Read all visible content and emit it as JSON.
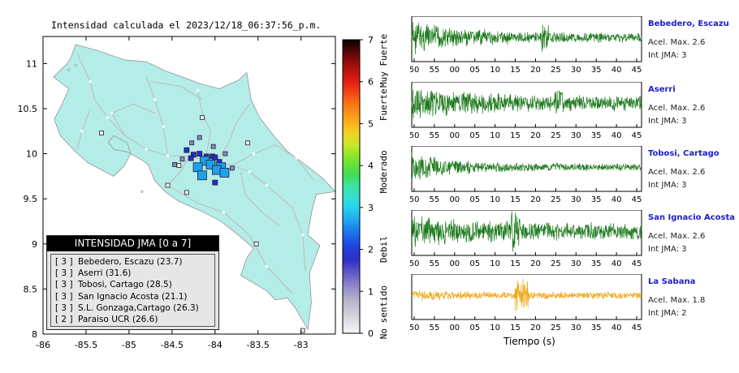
{
  "map": {
    "title": "Intensidad calculada el 2023/12/18_06:37:56_p.m.",
    "x_ticks": [
      "-86",
      "-85.5",
      "-85",
      "-84.5",
      "-84",
      "-83.5",
      "-83"
    ],
    "y_ticks": [
      "11",
      "10.5",
      "10",
      "9.5",
      "9",
      "8.5",
      "8"
    ],
    "land_color": "#b4ece8",
    "sea_color": "#ffffff",
    "road_color": "#bbbbbb"
  },
  "colorbar": {
    "ticks": [
      "0",
      "1",
      "2",
      "3",
      "4",
      "5",
      "6",
      "7"
    ],
    "labels": [
      "No sentido",
      "Debil",
      "Moderado",
      "Fuerte",
      "Muy Fuerte"
    ]
  },
  "legend": {
    "title": "INTENSIDAD JMA [0 a 7]",
    "rows": [
      {
        "level": "[ 3 ]",
        "text": "Bebedero, Escazu (23.7)"
      },
      {
        "level": "[ 3 ]",
        "text": "Aserri (31.6)"
      },
      {
        "level": "[ 3 ]",
        "text": "Tobosi, Cartago (28.5)"
      },
      {
        "level": "[ 3 ]",
        "text": "San Ignacio Acosta (21.1)"
      },
      {
        "level": "[ 3 ]",
        "text": "S.L. Gonzaga,Cartago (26.3)"
      },
      {
        "level": "[ 2 ]",
        "text": "Paraiso UCR (26.6)"
      }
    ]
  },
  "waveforms": {
    "time_ticks": [
      "50",
      "55",
      "00",
      "05",
      "10",
      "15",
      "20",
      "25",
      "30",
      "35",
      "40",
      "45"
    ],
    "xlabel": "Tiempo (s)",
    "stations": [
      {
        "name": "Bebedero, Escazu",
        "accel": "Acel. Max. 2.6",
        "jma": "Int JMA: 3",
        "color": "#1e7a1e"
      },
      {
        "name": "Aserri",
        "accel": "Acel. Max. 2.6",
        "jma": "Int JMA: 3",
        "color": "#1e7a1e"
      },
      {
        "name": "Tobosi, Cartago",
        "accel": "Acel. Max. 2.6",
        "jma": "Int JMA: 3",
        "color": "#1e7a1e"
      },
      {
        "name": "San Ignacio Acosta",
        "accel": "Acel. Max. 2.6",
        "jma": "Int JMA: 3",
        "color": "#1e7a1e"
      },
      {
        "name": "La Sabana",
        "accel": "Acel. Max. 1.8",
        "jma": "Int JMA: 2",
        "color": "#f0a818"
      }
    ]
  },
  "chart_data": [
    {
      "type": "scatter",
      "title": "Intensidad calculada el 2023/12/18_06:37:56_p.m.",
      "xlabel": "",
      "ylabel": "",
      "xlim": [
        -86,
        -82.55
      ],
      "ylim": [
        8,
        11.3
      ],
      "grid": false,
      "colorbar": {
        "range": [
          0,
          7
        ],
        "label_groups": [
          "No sentido",
          "Debil",
          "Moderado",
          "Fuerte",
          "Muy Fuerte"
        ]
      },
      "points": [
        {
          "lon": -84.12,
          "lat": 9.92,
          "level": 3
        },
        {
          "lon": -84.05,
          "lat": 9.88,
          "level": 3
        },
        {
          "lon": -83.93,
          "lat": 9.85,
          "level": 3
        },
        {
          "lon": -84.2,
          "lat": 9.85,
          "level": 3
        },
        {
          "lon": -83.98,
          "lat": 9.82,
          "level": 3
        },
        {
          "lon": -84.15,
          "lat": 9.76,
          "level": 3
        },
        {
          "lon": -83.89,
          "lat": 9.79,
          "level": 3
        },
        {
          "lon": -84.1,
          "lat": 9.97,
          "level": 2
        },
        {
          "lon": -84.03,
          "lat": 9.97,
          "level": 2
        },
        {
          "lon": -84.18,
          "lat": 10.0,
          "level": 2
        },
        {
          "lon": -84.0,
          "lat": 9.96,
          "level": 2
        },
        {
          "lon": -84.25,
          "lat": 9.99,
          "level": 2
        },
        {
          "lon": -83.95,
          "lat": 9.91,
          "level": 2
        },
        {
          "lon": -84.33,
          "lat": 10.04,
          "level": 2
        },
        {
          "lon": -84.0,
          "lat": 9.68,
          "level": 2
        },
        {
          "lon": -84.28,
          "lat": 9.95,
          "level": 2
        },
        {
          "lon": -84.38,
          "lat": 9.94,
          "level": 1
        },
        {
          "lon": -84.27,
          "lat": 10.12,
          "level": 1
        },
        {
          "lon": -84.18,
          "lat": 10.18,
          "level": 1
        },
        {
          "lon": -84.02,
          "lat": 10.08,
          "level": 1
        },
        {
          "lon": -83.88,
          "lat": 10.0,
          "level": 1
        },
        {
          "lon": -83.8,
          "lat": 9.84,
          "level": 1
        },
        {
          "lon": -84.47,
          "lat": 9.88,
          "level": 1
        },
        {
          "lon": -84.42,
          "lat": 9.87,
          "level": 0
        },
        {
          "lon": -84.15,
          "lat": 10.4,
          "level": 0
        },
        {
          "lon": -83.62,
          "lat": 10.12,
          "level": 0
        },
        {
          "lon": -84.55,
          "lat": 9.65,
          "level": 0
        },
        {
          "lon": -84.33,
          "lat": 9.57,
          "level": 0
        },
        {
          "lon": -85.32,
          "lat": 10.23,
          "level": 0
        },
        {
          "lon": -83.52,
          "lat": 9.0,
          "level": 0
        },
        {
          "lon": -82.98,
          "lat": 8.04,
          "level": 0
        }
      ]
    },
    {
      "type": "line",
      "title": "",
      "xlabel": "Tiempo (s)",
      "ylabel": "",
      "x_ticks": [
        "50",
        "55",
        "00",
        "05",
        "10",
        "15",
        "20",
        "25",
        "30",
        "35",
        "40",
        "45"
      ],
      "series": [
        {
          "name": "Bebedero, Escazu",
          "accel_max": 2.6,
          "int_jma": 3
        },
        {
          "name": "Aserri",
          "accel_max": 2.6,
          "int_jma": 3
        },
        {
          "name": "Tobosi, Cartago",
          "accel_max": 2.6,
          "int_jma": 3
        },
        {
          "name": "San Ignacio Acosta",
          "accel_max": 2.6,
          "int_jma": 3
        },
        {
          "name": "La Sabana",
          "accel_max": 1.8,
          "int_jma": 2
        }
      ]
    }
  ]
}
